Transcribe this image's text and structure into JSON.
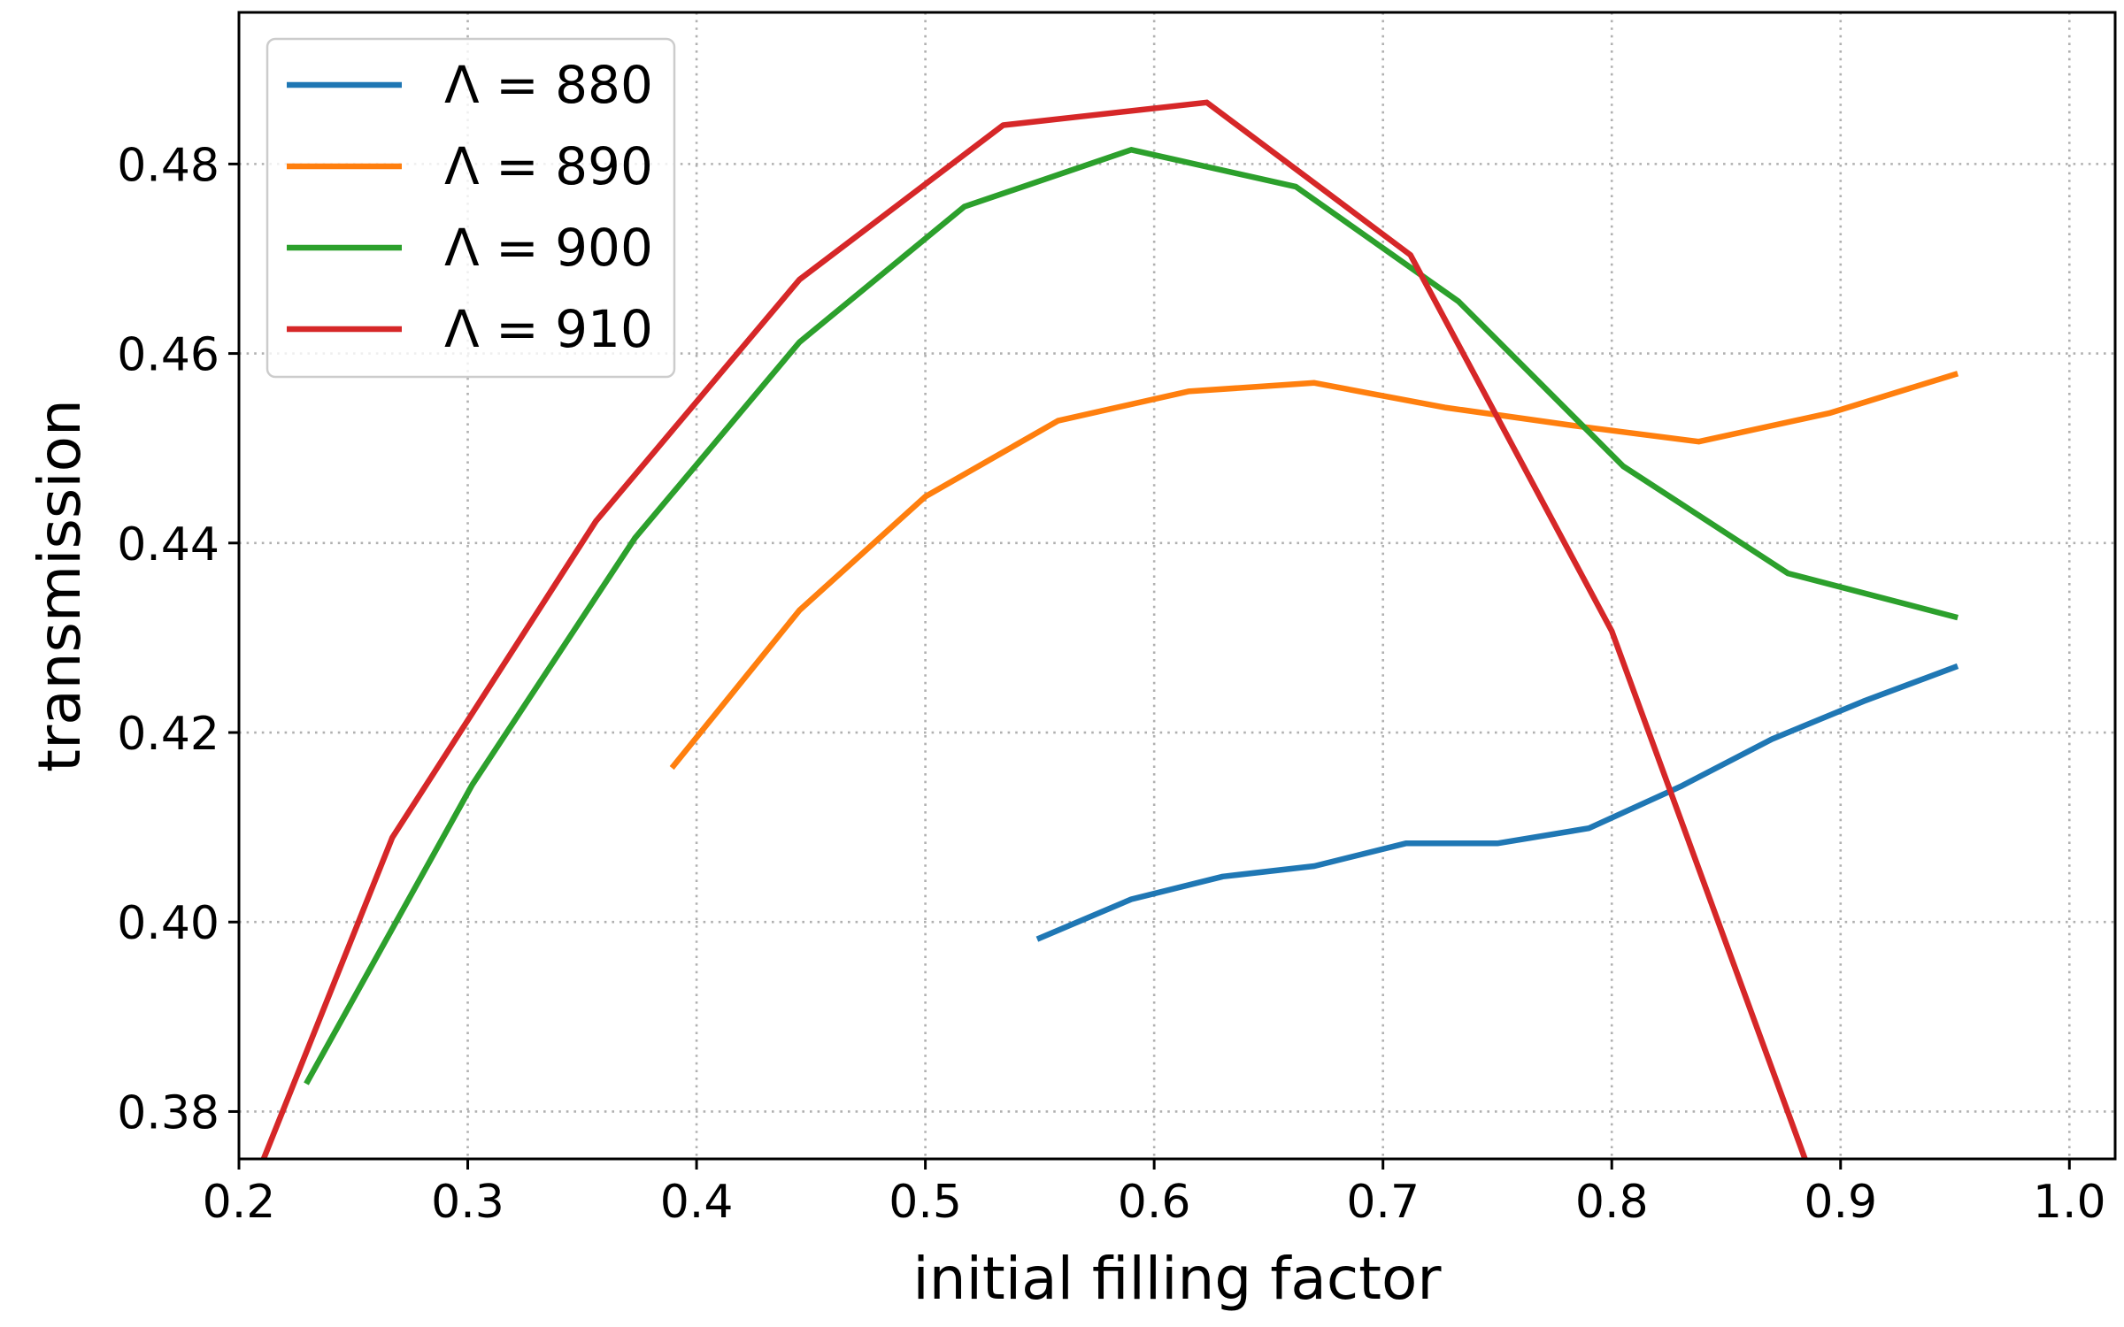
{
  "chart_data": {
    "type": "line",
    "xlabel": "initial filling factor",
    "ylabel": "transmission",
    "xlim": [
      0.2,
      1.02
    ],
    "ylim": [
      0.375,
      0.496
    ],
    "xticks": [
      {
        "value": 0.2,
        "label": "0.2"
      },
      {
        "value": 0.3,
        "label": "0.3"
      },
      {
        "value": 0.4,
        "label": "0.4"
      },
      {
        "value": 0.5,
        "label": "0.5"
      },
      {
        "value": 0.6,
        "label": "0.6"
      },
      {
        "value": 0.7,
        "label": "0.7"
      },
      {
        "value": 0.8,
        "label": "0.8"
      },
      {
        "value": 0.9,
        "label": "0.9"
      },
      {
        "value": 1.0,
        "label": "1.0"
      }
    ],
    "yticks": [
      {
        "value": 0.38,
        "label": "0.38"
      },
      {
        "value": 0.4,
        "label": "0.40"
      },
      {
        "value": 0.42,
        "label": "0.42"
      },
      {
        "value": 0.44,
        "label": "0.44"
      },
      {
        "value": 0.46,
        "label": "0.46"
      },
      {
        "value": 0.48,
        "label": "0.48"
      }
    ],
    "grid": true,
    "legend_position": "upper-left",
    "series": [
      {
        "name": "Λ = 880",
        "color": "#1f77b4",
        "x": [
          0.55,
          0.59,
          0.63,
          0.67,
          0.71,
          0.75,
          0.79,
          0.83,
          0.87,
          0.91,
          0.95
        ],
        "y": [
          0.3983,
          0.4024,
          0.4048,
          0.4059,
          0.4083,
          0.4083,
          0.4099,
          0.4143,
          0.4193,
          0.4233,
          0.4269
        ]
      },
      {
        "name": "Λ = 890",
        "color": "#ff7f0e",
        "x": [
          0.39,
          0.445,
          0.5,
          0.558,
          0.615,
          0.67,
          0.727,
          0.783,
          0.838,
          0.895,
          0.95
        ],
        "y": [
          0.4165,
          0.4329,
          0.4449,
          0.4529,
          0.456,
          0.4569,
          0.4543,
          0.4524,
          0.4507,
          0.4537,
          0.4578
        ]
      },
      {
        "name": "Λ = 900",
        "color": "#2ca02c",
        "x": [
          0.23,
          0.302,
          0.373,
          0.445,
          0.517,
          0.59,
          0.662,
          0.733,
          0.805,
          0.877,
          0.95
        ],
        "y": [
          0.3832,
          0.4145,
          0.4405,
          0.4612,
          0.4755,
          0.4815,
          0.4776,
          0.4655,
          0.4481,
          0.4368,
          0.4322
        ]
      },
      {
        "name": "Λ = 910",
        "color": "#d62728",
        "x": [
          0.2,
          0.267,
          0.356,
          0.445,
          0.534,
          0.623,
          0.712,
          0.8,
          0.889
        ],
        "y": [
          0.3685,
          0.4089,
          0.4423,
          0.4678,
          0.4841,
          0.4865,
          0.4704,
          0.4307,
          0.372
        ]
      }
    ]
  }
}
